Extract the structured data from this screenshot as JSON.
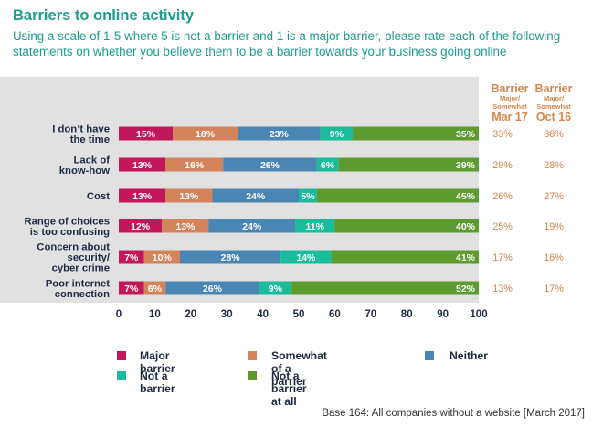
{
  "header": {
    "title": "Barriers to online activity",
    "subtitle": "Using a scale of 1-5 where 5 is not a barrier and 1 is a major barrier, please rate each of the following statements on whether you believe them to be a barrier towards your business going online"
  },
  "columns": [
    {
      "big1": "Barrier",
      "small1": "Major/",
      "small2": "Somewhat",
      "big2": "Mar 17"
    },
    {
      "big1": "Barrier",
      "small1": "Major/",
      "small2": "Somewhat",
      "big2": "Oct 16"
    }
  ],
  "colors": {
    "major": "#c2185b",
    "somewhat": "#d4845a",
    "neither": "#4a86b4",
    "not": "#1abc9c",
    "notatall": "#5e9b2f",
    "label": "#1f2a44",
    "side": "#d8854a"
  },
  "chart_data": {
    "type": "bar",
    "orientation": "horizontal",
    "stacked": true,
    "categories": [
      [
        "I don’t have",
        "the time"
      ],
      [
        "Lack of",
        "know-how"
      ],
      [
        "Cost"
      ],
      [
        "Range of choices",
        "is too confusing"
      ],
      [
        "Concern about",
        "security/",
        "cyber crime"
      ],
      [
        "Poor internet",
        "connection"
      ]
    ],
    "series": [
      {
        "name": "Major barrier",
        "color": "#c2185b",
        "values": [
          15,
          13,
          13,
          12,
          7,
          7
        ]
      },
      {
        "name": "Somewhat of a barrier",
        "color": "#d4845a",
        "values": [
          18,
          16,
          13,
          13,
          10,
          6
        ]
      },
      {
        "name": "Neither",
        "color": "#4a86b4",
        "values": [
          23,
          26,
          24,
          24,
          28,
          26
        ]
      },
      {
        "name": "Not a barrier",
        "color": "#1abc9c",
        "values": [
          9,
          6,
          5,
          11,
          14,
          9
        ]
      },
      {
        "name": "Not a barrier at all",
        "color": "#5e9b2f",
        "values": [
          35,
          39,
          45,
          40,
          41,
          52
        ]
      }
    ],
    "xticks": [
      0,
      10,
      20,
      30,
      40,
      50,
      60,
      70,
      80,
      90,
      100
    ],
    "xlim": [
      0,
      100
    ],
    "side_columns": {
      "mar17": [
        "33%",
        "29%",
        "26%",
        "25%",
        "17%",
        "13%"
      ],
      "oct16": [
        "38%",
        "28%",
        "27%",
        "19%",
        "16%",
        "17%"
      ]
    }
  },
  "footnote": "Base 164: All companies without a website [March 2017]"
}
